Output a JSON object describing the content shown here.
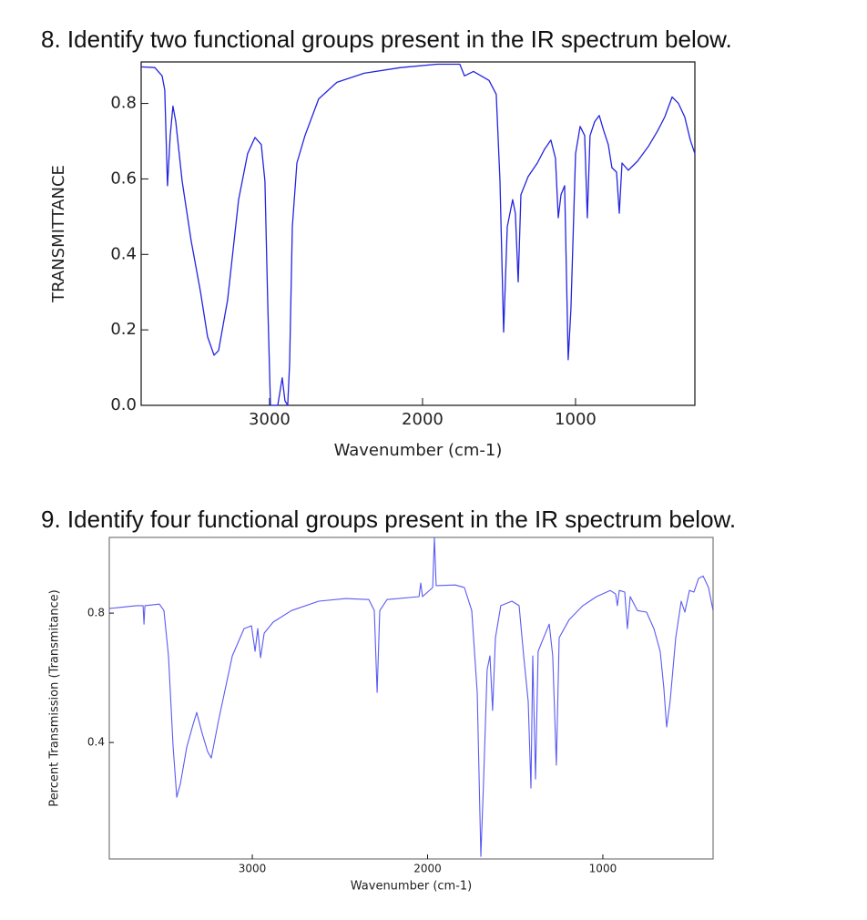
{
  "chart_data": [
    {
      "type": "line",
      "title": "8. Identify two functional groups present in the IR spectrum below.",
      "x_label": "Wavenumber (cm-1)",
      "y_label": "TRANSMITTANCE",
      "color": "#2424e0",
      "xlim": [
        3839,
        220
      ],
      "ylim": [
        0,
        0.91
      ],
      "xticks": [
        3000,
        2000,
        1000
      ],
      "yticks": [
        {
          "value": 0,
          "label": "0.0"
        },
        0.2,
        0.4,
        0.6,
        0.8
      ],
      "x": [
        3839,
        3750,
        3702,
        3685,
        3667,
        3649,
        3631,
        3613,
        3571,
        3512,
        3452,
        3405,
        3363,
        3333,
        3274,
        3202,
        3143,
        3095,
        3054,
        3030,
        3012,
        2994,
        2946,
        2917,
        2899,
        2881,
        2869,
        2851,
        2821,
        2768,
        2679,
        2560,
        2381,
        2143,
        1905,
        1756,
        1726,
        1667,
        1565,
        1518,
        1494,
        1470,
        1446,
        1411,
        1393,
        1375,
        1357,
        1310,
        1250,
        1202,
        1161,
        1131,
        1113,
        1095,
        1071,
        1048,
        1030,
        1000,
        970,
        940,
        923,
        905,
        875,
        845,
        815,
        786,
        762,
        732,
        714,
        696,
        655,
        595,
        524,
        464,
        417,
        369,
        327,
        286,
        250,
        220
      ],
      "values": [
        0.897,
        0.895,
        0.873,
        0.836,
        0.582,
        0.715,
        0.793,
        0.752,
        0.594,
        0.436,
        0.303,
        0.182,
        0.133,
        0.145,
        0.279,
        0.545,
        0.667,
        0.71,
        0.691,
        0.594,
        0.279,
        0,
        0,
        0.073,
        0.012,
        0,
        0.109,
        0.473,
        0.642,
        0.715,
        0.812,
        0.856,
        0.88,
        0.895,
        0.904,
        0.904,
        0.873,
        0.885,
        0.861,
        0.824,
        0.594,
        0.194,
        0.473,
        0.545,
        0.509,
        0.327,
        0.558,
        0.606,
        0.642,
        0.679,
        0.703,
        0.655,
        0.497,
        0.558,
        0.582,
        0.121,
        0.255,
        0.667,
        0.739,
        0.715,
        0.497,
        0.715,
        0.752,
        0.768,
        0.727,
        0.691,
        0.63,
        0.618,
        0.509,
        0.642,
        0.623,
        0.647,
        0.686,
        0.727,
        0.764,
        0.817,
        0.8,
        0.764,
        0.703,
        0.667
      ]
    },
    {
      "type": "line",
      "title": "9. Identify four functional groups present in the IR spectrum below.",
      "x_label": "Wavenumber (cm-1)",
      "y_label": "Percent Transmission (Transmitance)",
      "color": "#5a5af2",
      "xlim": [
        3816,
        371
      ],
      "ylim": [
        0.04,
        1.034
      ],
      "xticks": [
        3000,
        2000,
        1000
      ],
      "yticks": [
        0.4,
        0.8
      ],
      "x": [
        3816,
        3660,
        3623,
        3618,
        3613,
        3530,
        3504,
        3478,
        3452,
        3431,
        3410,
        3374,
        3338,
        3317,
        3286,
        3255,
        3234,
        3192,
        3114,
        3047,
        3005,
        2984,
        2969,
        2953,
        2932,
        2881,
        2777,
        2621,
        2465,
        2335,
        2304,
        2288,
        2273,
        2231,
        2049,
        2039,
        2029,
        1971,
        1961,
        1951,
        1842,
        1790,
        1748,
        1717,
        1696,
        1681,
        1660,
        1644,
        1629,
        1613,
        1582,
        1519,
        1478,
        1452,
        1426,
        1410,
        1400,
        1384,
        1369,
        1338,
        1306,
        1286,
        1265,
        1249,
        1192,
        1114,
        1036,
        958,
        927,
        917,
        906,
        875,
        860,
        844,
        803,
        751,
        709,
        673,
        652,
        636,
        616,
        584,
        553,
        532,
        506,
        480,
        454,
        428,
        397,
        371
      ],
      "values": [
        0.814,
        0.823,
        0.823,
        0.766,
        0.823,
        0.828,
        0.808,
        0.668,
        0.386,
        0.231,
        0.273,
        0.386,
        0.456,
        0.493,
        0.428,
        0.372,
        0.352,
        0.47,
        0.668,
        0.752,
        0.761,
        0.682,
        0.752,
        0.662,
        0.738,
        0.772,
        0.808,
        0.837,
        0.845,
        0.842,
        0.808,
        0.555,
        0.808,
        0.842,
        0.851,
        0.893,
        0.851,
        0.879,
        1.034,
        0.885,
        0.887,
        0.879,
        0.808,
        0.555,
        0.048,
        0.273,
        0.625,
        0.668,
        0.499,
        0.724,
        0.823,
        0.837,
        0.823,
        0.668,
        0.527,
        0.259,
        0.668,
        0.287,
        0.682,
        0.724,
        0.766,
        0.668,
        0.33,
        0.724,
        0.78,
        0.823,
        0.851,
        0.87,
        0.859,
        0.823,
        0.87,
        0.865,
        0.752,
        0.851,
        0.808,
        0.803,
        0.752,
        0.682,
        0.569,
        0.448,
        0.527,
        0.724,
        0.837,
        0.803,
        0.87,
        0.865,
        0.907,
        0.915,
        0.879,
        0.808
      ]
    }
  ]
}
